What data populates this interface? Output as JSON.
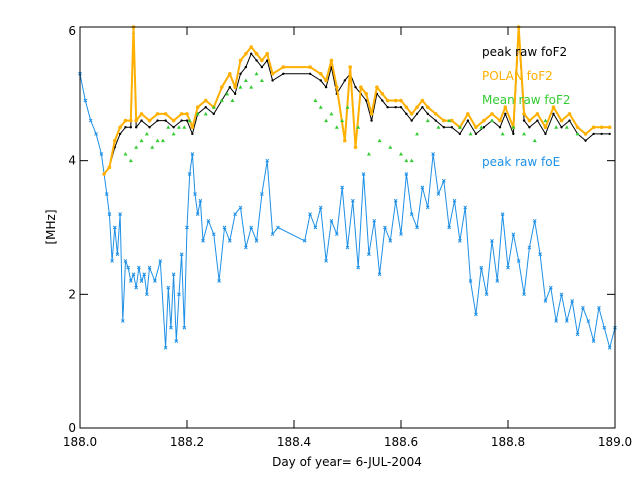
{
  "chart_data": {
    "type": "line",
    "title": "",
    "xlabel": "Day of year= 6-JUL-2004",
    "ylabel": "[MHz]",
    "xlim": [
      188.0,
      189.0
    ],
    "ylim": [
      0,
      6
    ],
    "xticks": [
      188.0,
      188.2,
      188.4,
      188.6,
      188.8,
      189.0
    ],
    "xtick_labels": [
      "188.0",
      "188.2",
      "188.4",
      "188.6",
      "188.8",
      "189.0"
    ],
    "yticks": [
      0,
      2,
      4,
      6
    ],
    "ytick_labels": [
      "0",
      "2",
      "4",
      "6"
    ],
    "grid": false,
    "legend_position": "top-right",
    "series": [
      {
        "name": "peak raw foF2",
        "color": "#000000",
        "style": "line-with-markers",
        "x": [
          188.045,
          188.055,
          188.065,
          188.075,
          188.085,
          188.095,
          188.1,
          188.105,
          188.115,
          188.13,
          188.145,
          188.16,
          188.175,
          188.19,
          188.2,
          188.21,
          188.22,
          188.235,
          188.25,
          188.265,
          188.28,
          188.29,
          188.3,
          188.31,
          188.32,
          188.33,
          188.34,
          188.35,
          188.36,
          188.38,
          188.43,
          188.45,
          188.46,
          188.47,
          188.48,
          188.495,
          188.505,
          188.515,
          188.525,
          188.535,
          188.545,
          188.555,
          188.565,
          188.575,
          188.59,
          188.6,
          188.61,
          188.62,
          188.63,
          188.64,
          188.65,
          188.665,
          188.68,
          188.695,
          188.71,
          188.725,
          188.74,
          188.755,
          188.77,
          188.785,
          188.795,
          188.81,
          188.82,
          188.83,
          188.84,
          188.855,
          188.87,
          188.885,
          188.9,
          188.915,
          188.93,
          188.945,
          188.96,
          188.975,
          188.99
        ],
        "y": [
          3.8,
          3.9,
          4.2,
          4.4,
          4.5,
          4.5,
          5.9,
          4.5,
          4.6,
          4.5,
          4.6,
          4.6,
          4.5,
          4.6,
          4.6,
          4.4,
          4.7,
          4.8,
          4.7,
          4.9,
          5.1,
          5.0,
          5.3,
          5.4,
          5.6,
          5.5,
          5.4,
          5.5,
          5.2,
          5.3,
          5.3,
          5.2,
          5.1,
          5.4,
          5.0,
          5.2,
          5.3,
          5.1,
          5.0,
          4.9,
          4.6,
          5.0,
          4.9,
          4.8,
          4.8,
          4.8,
          4.7,
          4.6,
          4.7,
          4.8,
          4.7,
          4.6,
          4.5,
          4.5,
          4.4,
          4.6,
          4.4,
          4.5,
          4.6,
          4.5,
          4.7,
          4.4,
          5.9,
          4.6,
          4.5,
          4.6,
          4.4,
          4.7,
          4.5,
          4.6,
          4.4,
          4.3,
          4.4,
          4.4,
          4.4
        ]
      },
      {
        "name": "POLAN foF2",
        "color": "#ffb000",
        "style": "line-with-markers",
        "x": [
          188.045,
          188.055,
          188.065,
          188.075,
          188.085,
          188.095,
          188.1,
          188.105,
          188.115,
          188.13,
          188.145,
          188.16,
          188.175,
          188.19,
          188.2,
          188.21,
          188.22,
          188.235,
          188.25,
          188.265,
          188.28,
          188.29,
          188.3,
          188.31,
          188.32,
          188.33,
          188.34,
          188.35,
          188.36,
          188.38,
          188.43,
          188.45,
          188.46,
          188.47,
          188.48,
          188.495,
          188.505,
          188.515,
          188.525,
          188.535,
          188.545,
          188.555,
          188.565,
          188.575,
          188.59,
          188.6,
          188.61,
          188.62,
          188.63,
          188.64,
          188.65,
          188.665,
          188.68,
          188.695,
          188.71,
          188.725,
          188.74,
          188.755,
          188.77,
          188.785,
          188.795,
          188.81,
          188.82,
          188.83,
          188.84,
          188.855,
          188.87,
          188.885,
          188.9,
          188.915,
          188.93,
          188.945,
          188.96,
          188.975,
          188.99
        ],
        "y": [
          3.8,
          3.9,
          4.3,
          4.5,
          4.6,
          4.6,
          6.0,
          4.6,
          4.7,
          4.6,
          4.7,
          4.7,
          4.6,
          4.7,
          4.7,
          4.5,
          4.8,
          4.9,
          4.8,
          5.1,
          5.3,
          5.1,
          5.5,
          5.6,
          5.7,
          5.6,
          5.5,
          5.6,
          5.3,
          5.4,
          5.4,
          5.3,
          5.2,
          5.5,
          5.1,
          4.3,
          5.4,
          4.2,
          5.1,
          5.0,
          4.7,
          5.1,
          5.0,
          4.9,
          4.9,
          4.9,
          4.8,
          4.7,
          4.8,
          4.9,
          4.8,
          4.7,
          4.6,
          4.6,
          4.5,
          4.7,
          4.5,
          4.6,
          4.7,
          4.6,
          4.8,
          4.5,
          6.0,
          4.7,
          4.6,
          4.7,
          4.5,
          4.8,
          4.6,
          4.7,
          4.5,
          4.4,
          4.5,
          4.5,
          4.5
        ]
      },
      {
        "name": "Mean raw foF2",
        "color": "#33cc33",
        "style": "markers",
        "x": [
          188.085,
          188.095,
          188.105,
          188.115,
          188.125,
          188.135,
          188.145,
          188.155,
          188.165,
          188.175,
          188.185,
          188.195,
          188.205,
          188.22,
          188.235,
          188.25,
          188.265,
          188.275,
          188.285,
          188.3,
          188.31,
          188.32,
          188.33,
          188.34,
          188.44,
          188.45,
          188.46,
          188.47,
          188.48,
          188.49,
          188.5,
          188.52,
          188.54,
          188.56,
          188.58,
          188.6,
          188.61,
          188.62,
          188.63,
          188.65,
          188.67,
          188.69,
          188.71,
          188.73,
          188.75,
          188.77,
          188.79,
          188.81,
          188.83,
          188.85,
          188.87,
          188.89,
          188.91,
          188.93
        ],
        "y": [
          4.1,
          4.0,
          4.2,
          4.3,
          4.4,
          4.2,
          4.3,
          4.3,
          4.5,
          4.4,
          4.5,
          4.5,
          4.6,
          4.7,
          4.7,
          4.8,
          4.9,
          5.0,
          4.9,
          5.1,
          5.2,
          5.1,
          5.3,
          5.2,
          4.9,
          4.8,
          4.6,
          4.7,
          4.5,
          4.6,
          4.8,
          4.5,
          4.1,
          4.3,
          4.2,
          4.1,
          4.0,
          4.0,
          4.4,
          4.6,
          4.5,
          4.6,
          4.5,
          4.4,
          4.5,
          4.6,
          4.4,
          4.5,
          4.4,
          4.3,
          4.6,
          4.5,
          4.5,
          4.4
        ]
      },
      {
        "name": "peak raw foE",
        "color": "#1e90e6",
        "style": "line-with-markers",
        "x": [
          188.0,
          188.01,
          188.02,
          188.03,
          188.04,
          188.05,
          188.055,
          188.06,
          188.065,
          188.07,
          188.075,
          188.08,
          188.085,
          188.09,
          188.095,
          188.1,
          188.105,
          188.11,
          188.115,
          188.12,
          188.125,
          188.13,
          188.14,
          188.15,
          188.16,
          188.165,
          188.17,
          188.175,
          188.18,
          188.185,
          188.19,
          188.195,
          188.2,
          188.205,
          188.21,
          188.215,
          188.22,
          188.225,
          188.23,
          188.24,
          188.25,
          188.26,
          188.27,
          188.28,
          188.29,
          188.3,
          188.31,
          188.32,
          188.33,
          188.34,
          188.35,
          188.36,
          188.37,
          188.42,
          188.43,
          188.44,
          188.45,
          188.46,
          188.47,
          188.48,
          188.49,
          188.5,
          188.51,
          188.52,
          188.53,
          188.54,
          188.55,
          188.56,
          188.57,
          188.58,
          188.59,
          188.6,
          188.61,
          188.62,
          188.63,
          188.64,
          188.65,
          188.66,
          188.67,
          188.68,
          188.69,
          188.7,
          188.71,
          188.72,
          188.73,
          188.74,
          188.75,
          188.76,
          188.77,
          188.78,
          188.79,
          188.8,
          188.81,
          188.82,
          188.83,
          188.84,
          188.85,
          188.86,
          188.87,
          188.88,
          188.89,
          188.9,
          188.91,
          188.92,
          188.93,
          188.94,
          188.95,
          188.96,
          188.97,
          188.98,
          188.99,
          189.0
        ],
        "y": [
          5.3,
          4.9,
          4.6,
          4.4,
          4.1,
          3.5,
          3.2,
          2.5,
          3.0,
          2.6,
          3.2,
          1.6,
          2.5,
          2.4,
          2.2,
          2.3,
          2.1,
          2.4,
          2.2,
          2.3,
          2.0,
          2.4,
          2.2,
          2.5,
          1.2,
          2.1,
          1.5,
          2.3,
          1.3,
          2.0,
          2.6,
          1.5,
          3.0,
          3.8,
          4.1,
          3.5,
          3.2,
          3.4,
          2.8,
          3.1,
          2.9,
          2.2,
          3.0,
          2.8,
          3.2,
          3.3,
          2.7,
          3.0,
          2.8,
          3.5,
          4.0,
          2.9,
          3.0,
          2.8,
          3.2,
          3.0,
          3.3,
          2.5,
          3.1,
          2.9,
          3.6,
          2.7,
          3.4,
          2.4,
          3.8,
          2.6,
          3.1,
          2.3,
          3.0,
          2.8,
          3.4,
          2.9,
          3.8,
          3.2,
          3.0,
          3.6,
          3.3,
          4.1,
          3.5,
          3.7,
          3.0,
          3.4,
          2.8,
          3.3,
          2.2,
          1.7,
          2.4,
          2.0,
          2.8,
          2.2,
          3.2,
          2.4,
          2.9,
          2.5,
          2.0,
          2.7,
          3.1,
          2.6,
          1.9,
          2.1,
          1.6,
          2.0,
          1.6,
          1.9,
          1.4,
          1.8,
          1.6,
          1.3,
          1.8,
          1.5,
          1.2,
          1.5
        ]
      }
    ]
  }
}
